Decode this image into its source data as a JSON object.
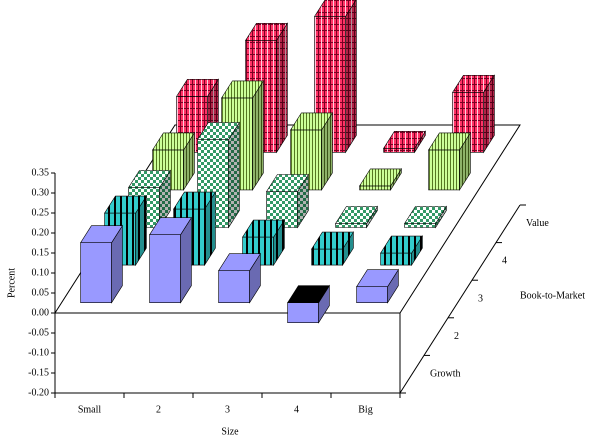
{
  "chart_data": {
    "type": "bar3d",
    "x_label": "Size",
    "y_label": "Percent",
    "z_label": "Book-to-Market",
    "categories": [
      "Small",
      "2",
      "3",
      "4",
      "Big"
    ],
    "series": [
      {
        "name": "Growth",
        "color": "#9999ff",
        "values": [
          0.15,
          0.17,
          0.08,
          -0.05,
          0.04
        ]
      },
      {
        "name": "2",
        "color": "#33cccc",
        "values": [
          0.13,
          0.14,
          0.07,
          0.04,
          0.03
        ]
      },
      {
        "name": "3",
        "color": "#339966",
        "values": [
          0.1,
          0.22,
          0.09,
          0.01,
          0.01
        ]
      },
      {
        "name": "4",
        "color": "#ccff99",
        "values": [
          0.1,
          0.23,
          0.15,
          0.01,
          0.1
        ]
      },
      {
        "name": "Value",
        "color": "#ff3366",
        "values": [
          0.14,
          0.28,
          0.34,
          0.01,
          0.15
        ]
      }
    ],
    "ylim": [
      -0.2,
      0.35
    ],
    "yticks": [
      {
        "value": -0.2,
        "label": "-0.20"
      },
      -0.15,
      {
        "value": -0.1,
        "label": "-0.10"
      },
      -0.05,
      {
        "value": 0,
        "label": "0.00"
      },
      0.05,
      {
        "value": 0.1,
        "label": "0.10"
      },
      0.15,
      {
        "value": 0.2,
        "label": "0.20"
      },
      0.25,
      {
        "value": 0.3,
        "label": "0.30"
      },
      0.35
    ]
  }
}
